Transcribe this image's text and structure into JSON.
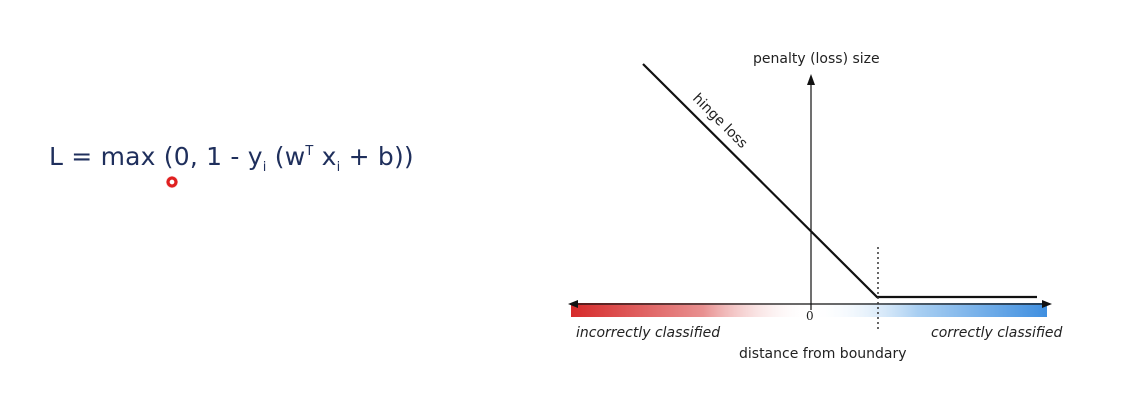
{
  "formula": {
    "lhs": "L = max (",
    "zero": "0",
    "comma": ",",
    "one": " 1  -  y",
    "sub_i1": "i",
    "paren_w": " (w",
    "sup_T": "T",
    "x": " x",
    "sub_i2": "i",
    "plus_b": "  +  b))"
  },
  "diagram": {
    "y_axis_label": "penalty (loss) size",
    "curve_label": "hinge loss",
    "origin_label": "0",
    "x_axis_label": "distance from boundary",
    "left_label": "incorrectly classified",
    "right_label": "correctly classified"
  },
  "colors": {
    "formula_text": "#1f2f5c",
    "incorrect": "#d62a2a",
    "correct": "#3f8fe0",
    "line": "#111111",
    "cursor": "#e02020"
  }
}
